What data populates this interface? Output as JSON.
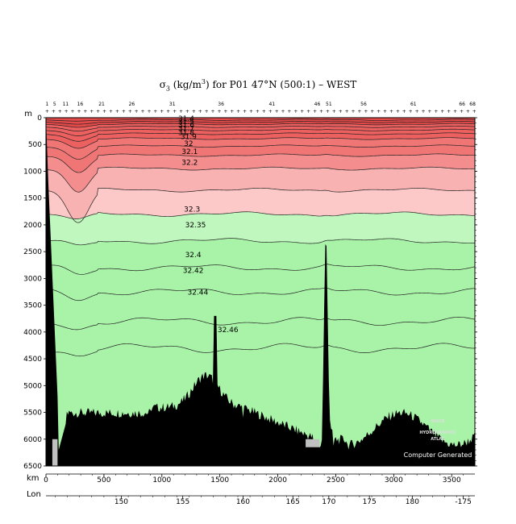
{
  "chart_data": {
    "type": "heatmap",
    "title": {
      "sigma": "σ",
      "sub": "3",
      "unit_pre": " (kg/m",
      "unit_exp": "3",
      "rest": ") for P01 47°N (500:1) – WEST"
    },
    "xlabel": "km",
    "ylabel": "m",
    "lon_label": "Lon",
    "xlim": [
      0,
      3700
    ],
    "ylim": [
      6500,
      0
    ],
    "x_ticks": [
      0,
      500,
      1000,
      1500,
      2000,
      2500,
      3000,
      3500
    ],
    "y_ticks": [
      0,
      500,
      1000,
      1500,
      2000,
      2500,
      3000,
      3500,
      4000,
      4500,
      5000,
      5500,
      6000,
      6500
    ],
    "lon_ticks": [
      {
        "km": 650,
        "label": "150"
      },
      {
        "km": 1180,
        "label": "155"
      },
      {
        "km": 1700,
        "label": "160"
      },
      {
        "km": 2130,
        "label": "165"
      },
      {
        "km": 2440,
        "label": "170"
      },
      {
        "km": 2790,
        "label": "175"
      },
      {
        "km": 3160,
        "label": "180"
      },
      {
        "km": 3600,
        "label": "-175"
      }
    ],
    "station_labels": [
      {
        "km": 10,
        "label": "1"
      },
      {
        "km": 75,
        "label": "5"
      },
      {
        "km": 170,
        "label": "11"
      },
      {
        "km": 295,
        "label": "16"
      },
      {
        "km": 480,
        "label": "21"
      },
      {
        "km": 740,
        "label": "26"
      },
      {
        "km": 1090,
        "label": "31"
      },
      {
        "km": 1510,
        "label": "36"
      },
      {
        "km": 1950,
        "label": "41"
      },
      {
        "km": 2340,
        "label": "46"
      },
      {
        "km": 2440,
        "label": "51"
      },
      {
        "km": 2740,
        "label": "56"
      },
      {
        "km": 3170,
        "label": "61"
      },
      {
        "km": 3590,
        "label": "66"
      },
      {
        "km": 3680,
        "label": "68"
      }
    ],
    "levels": [
      "31.4",
      "31.5",
      "31.6",
      "31.7",
      "31.8",
      "31.9",
      "32",
      "32.1",
      "32.2",
      "32.3",
      "32.35",
      "32.4",
      "32.42",
      "32.44",
      "32.46"
    ],
    "contour_depths": [
      40,
      80,
      120,
      170,
      230,
      300,
      390,
      530,
      700,
      950,
      1350,
      1800,
      2300,
      2800,
      3250,
      3800,
      4300
    ],
    "fill_colors": [
      "#e54a4a",
      "#ec6060",
      "#f07676",
      "#f48e8e",
      "#f8b2b2",
      "#fcc8c8",
      "#bff7bf",
      "#a8f3a8",
      "#9eef9e"
    ],
    "bottom_color": "#000000",
    "no_data_color": "#c0c0c0",
    "logo": [
      "WOCE",
      "HYDROGRAPHIC",
      "ATLAS"
    ],
    "credit": "Computer Generated"
  }
}
